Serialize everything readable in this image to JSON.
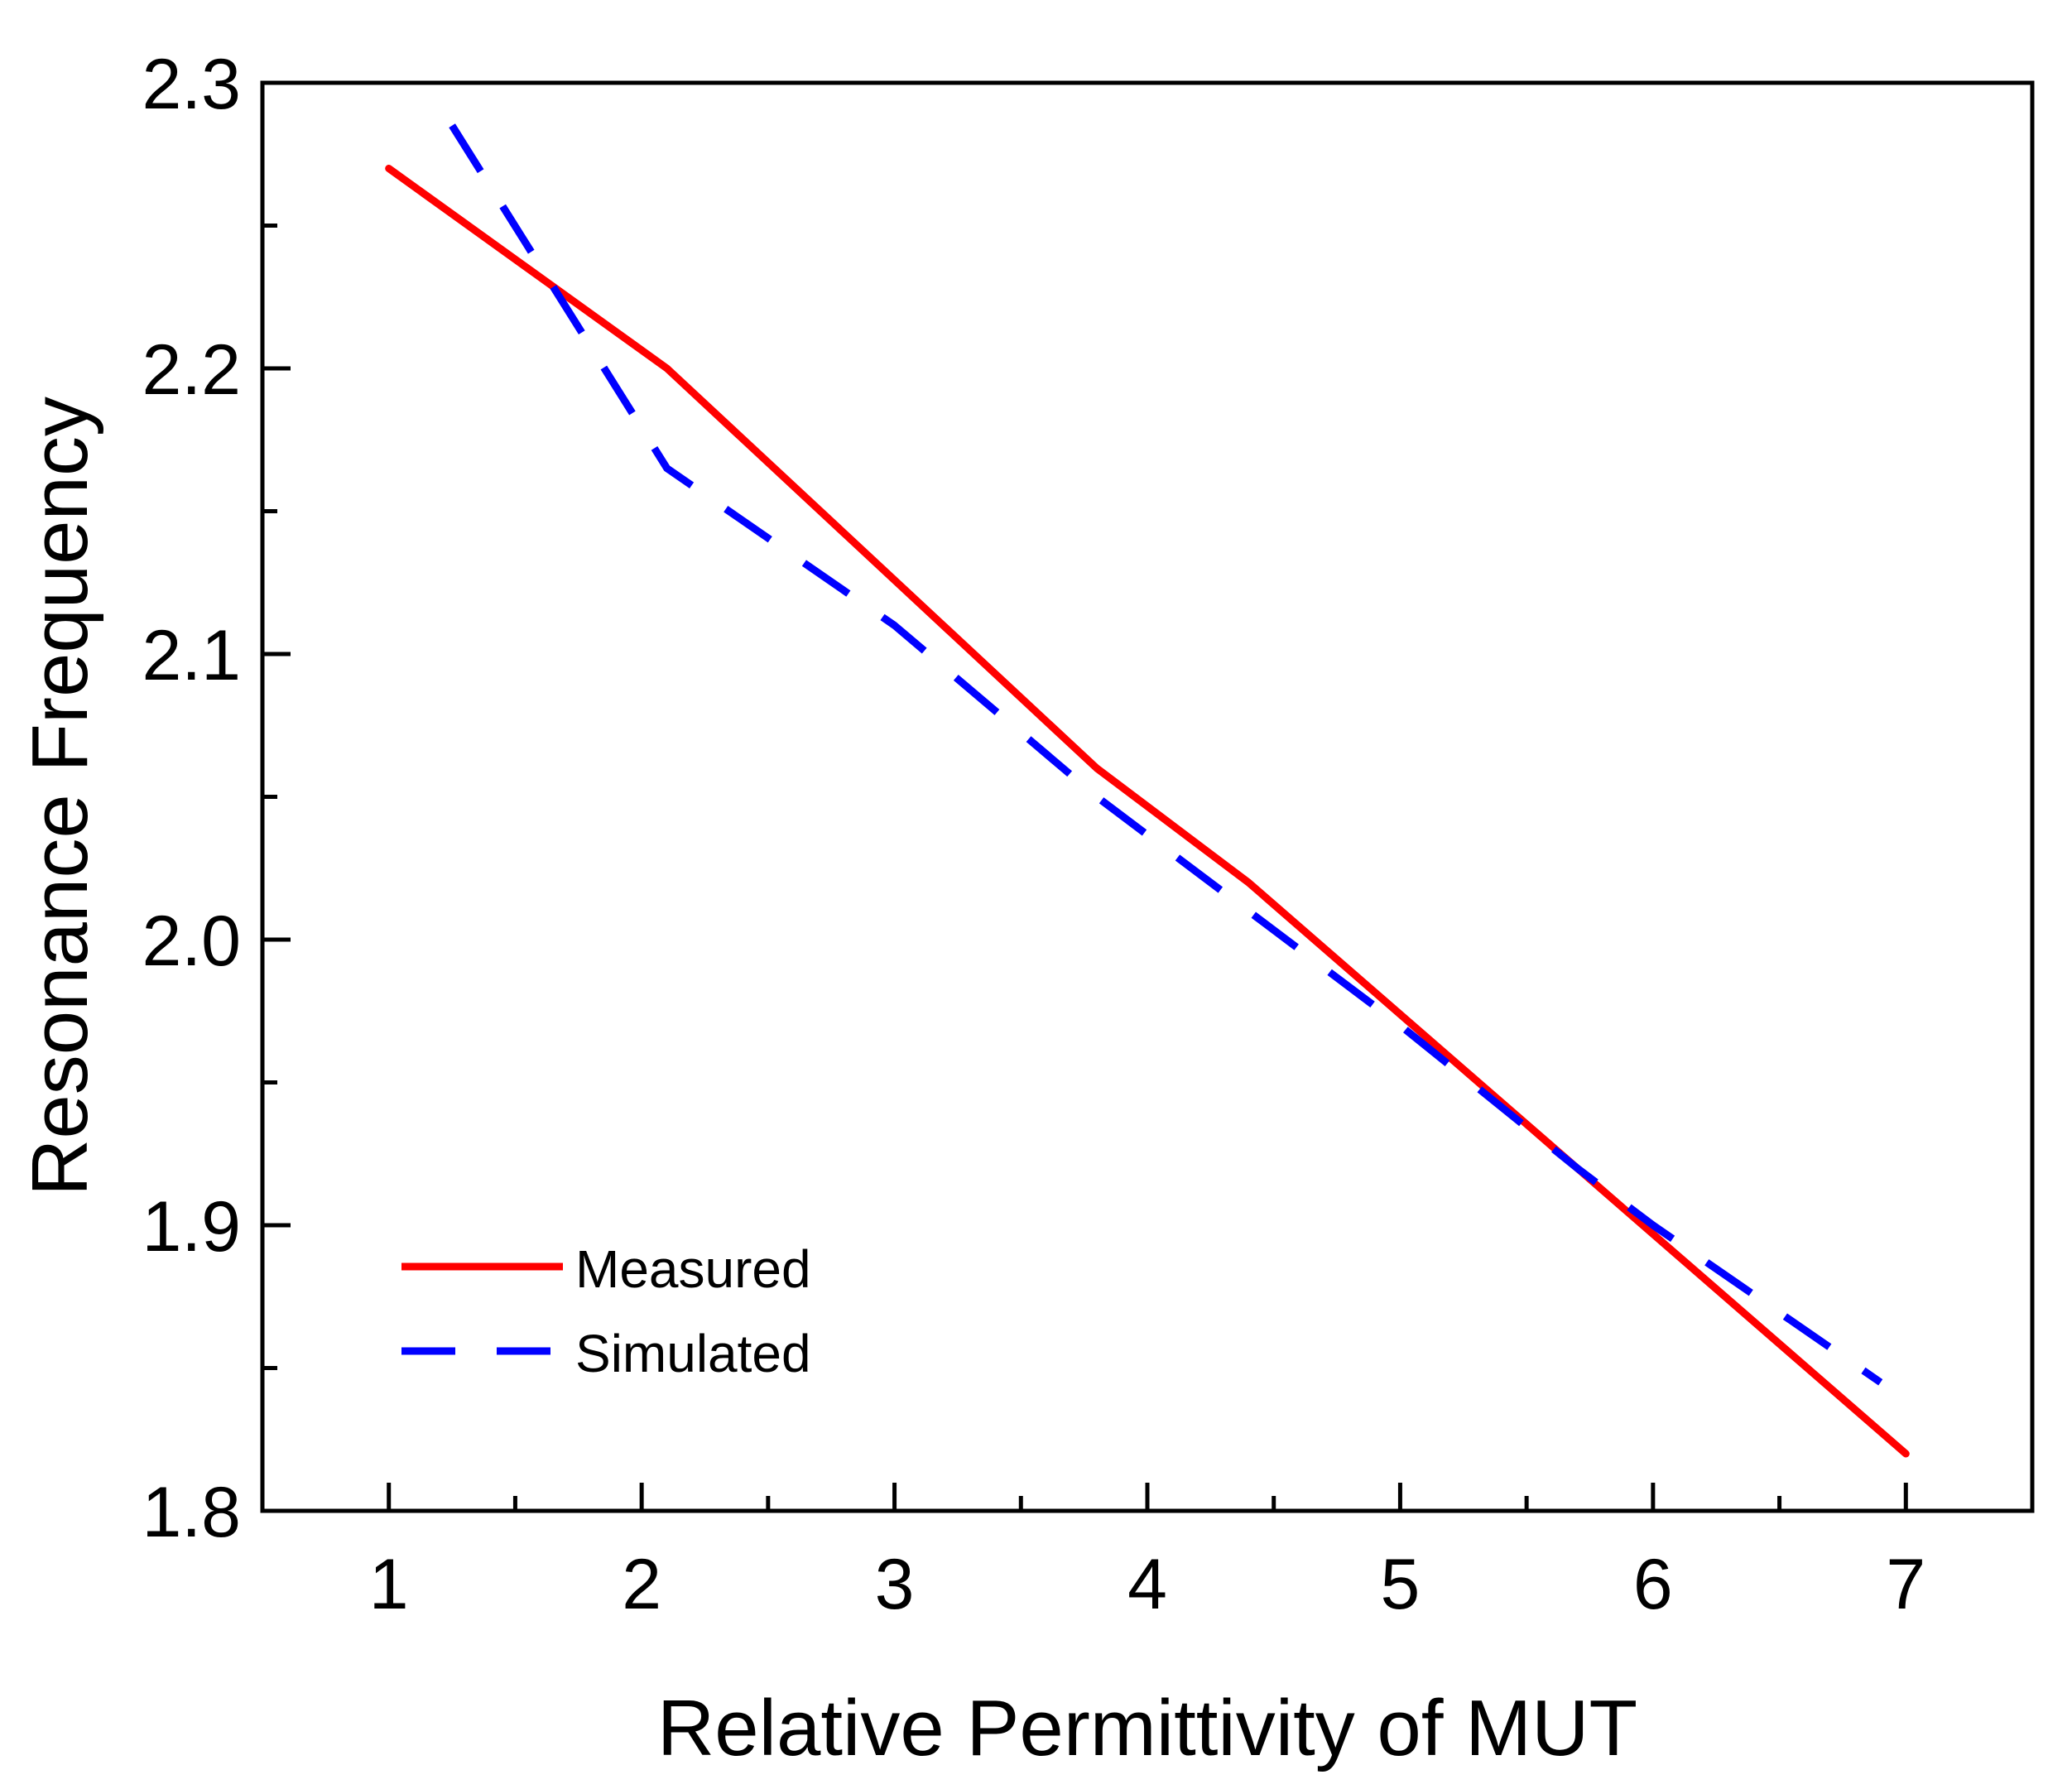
{
  "chart_data": {
    "type": "line",
    "title": "",
    "xlabel": "Relative Permittivity of MUT",
    "ylabel": "Resonance Frequency",
    "xlim": [
      0.5,
      7.5
    ],
    "ylim": [
      1.8,
      2.3
    ],
    "xticks": [
      1,
      2,
      3,
      4,
      5,
      6,
      7
    ],
    "xtick_labels": [
      "1",
      "2",
      "3",
      "4",
      "5",
      "6",
      "7"
    ],
    "yticks": [
      1.8,
      1.9,
      2.0,
      2.1,
      2.2,
      2.3
    ],
    "ytick_labels": [
      "1.8",
      "1.9",
      "2.0",
      "2.1",
      "2.2",
      "2.3"
    ],
    "grid": false,
    "legend_position": "bottom-left",
    "series": [
      {
        "name": "Measured",
        "style": "solid",
        "color": "#ff0000",
        "x": [
          1,
          2.1,
          3.8,
          4.4,
          5.7,
          7
        ],
        "y": [
          2.27,
          2.2,
          2.06,
          2.02,
          1.92,
          1.82
        ]
      },
      {
        "name": "Simulated",
        "style": "dashed",
        "color": "#0000ff",
        "x": [
          1.25,
          2.1,
          3.0,
          3.8,
          4.4,
          5.0,
          5.7,
          6.0,
          6.9
        ],
        "y": [
          2.285,
          2.165,
          2.11,
          2.05,
          2.01,
          1.97,
          1.92,
          1.9,
          1.845
        ]
      }
    ]
  }
}
